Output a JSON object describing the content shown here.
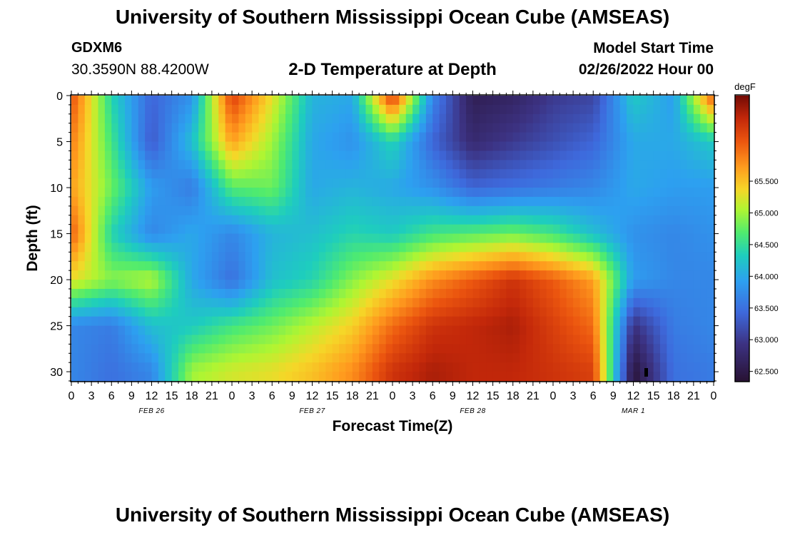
{
  "header": {
    "title": "University of Southern Mississippi Ocean Cube (AMSEAS)",
    "station_id": "GDXM6",
    "station_coords": "30.3590N  88.4200W",
    "subtitle": "2-D Temperature at Depth",
    "model_start_label": "Model Start Time",
    "model_start_value": "02/26/2022 Hour 00"
  },
  "footer": {
    "title": "University of Southern Mississippi Ocean Cube (AMSEAS)"
  },
  "chart_data": {
    "type": "heatmap",
    "xlabel": "Forecast Time(Z)",
    "ylabel": "Depth (ft)",
    "x_hours_range": [
      0,
      96
    ],
    "y_range": [
      0,
      31
    ],
    "y_ticks": [
      0,
      5,
      10,
      15,
      20,
      25,
      30
    ],
    "x_tick_labels": [
      "0",
      "3",
      "6",
      "9",
      "12",
      "15",
      "18",
      "21",
      "0",
      "3",
      "6",
      "9",
      "12",
      "15",
      "18",
      "21",
      "0",
      "3",
      "6",
      "9",
      "12",
      "15",
      "18",
      "21",
      "0",
      "3",
      "6",
      "9",
      "12",
      "15",
      "18",
      "21",
      "0"
    ],
    "date_labels": [
      {
        "label": "FEB 26",
        "hour": 12
      },
      {
        "label": "FEB 27",
        "hour": 36
      },
      {
        "label": "FEB 28",
        "hour": 60
      },
      {
        "label": "MAR 1",
        "hour": 84
      }
    ],
    "colorbar": {
      "unit": "degF",
      "min": 62.35,
      "max": 66.85,
      "ticks": [
        "62.500",
        "63.000",
        "63.500",
        "64.000",
        "64.500",
        "65.000",
        "65.500"
      ],
      "tick_values": [
        62.5,
        63.0,
        63.5,
        64.0,
        64.5,
        65.0,
        65.5
      ]
    },
    "temperature_field": {
      "hours": [
        0,
        6,
        12,
        18,
        24,
        30,
        36,
        42,
        48,
        54,
        60,
        66,
        72,
        78,
        84,
        90,
        96
      ],
      "depths": [
        0,
        5,
        10,
        15,
        20,
        25,
        30
      ],
      "values_degF": [
        [
          66.2,
          64.4,
          63.4,
          63.8,
          66.3,
          65.3,
          64.1,
          64.0,
          66.4,
          63.7,
          62.6,
          62.7,
          63.0,
          63.1,
          64.3,
          63.9,
          66.2
        ],
        [
          65.9,
          64.6,
          63.3,
          64.2,
          65.7,
          65.0,
          64.0,
          63.8,
          64.4,
          63.4,
          62.8,
          63.0,
          63.2,
          63.4,
          64.0,
          64.0,
          64.3
        ],
        [
          65.7,
          64.8,
          63.9,
          63.6,
          64.7,
          64.8,
          64.0,
          64.1,
          64.0,
          63.8,
          63.4,
          63.5,
          63.6,
          63.7,
          64.0,
          63.9,
          63.9
        ],
        [
          66.1,
          64.4,
          63.7,
          64.0,
          63.7,
          64.1,
          64.2,
          64.4,
          64.3,
          64.6,
          64.7,
          64.8,
          64.6,
          64.2,
          63.8,
          63.7,
          63.8
        ],
        [
          65.3,
          64.9,
          65.1,
          64.0,
          63.5,
          64.2,
          64.4,
          64.9,
          65.3,
          65.8,
          66.1,
          66.4,
          66.1,
          65.7,
          63.9,
          63.7,
          63.7
        ],
        [
          63.7,
          63.6,
          64.2,
          64.3,
          64.6,
          64.8,
          65.1,
          65.4,
          66.0,
          66.4,
          66.5,
          66.6,
          66.3,
          66.0,
          62.9,
          63.6,
          63.7
        ],
        [
          63.7,
          63.5,
          63.7,
          65.0,
          65.2,
          65.3,
          65.5,
          65.8,
          66.4,
          66.6,
          66.5,
          66.5,
          66.4,
          66.3,
          62.4,
          63.5,
          63.6
        ]
      ]
    }
  }
}
